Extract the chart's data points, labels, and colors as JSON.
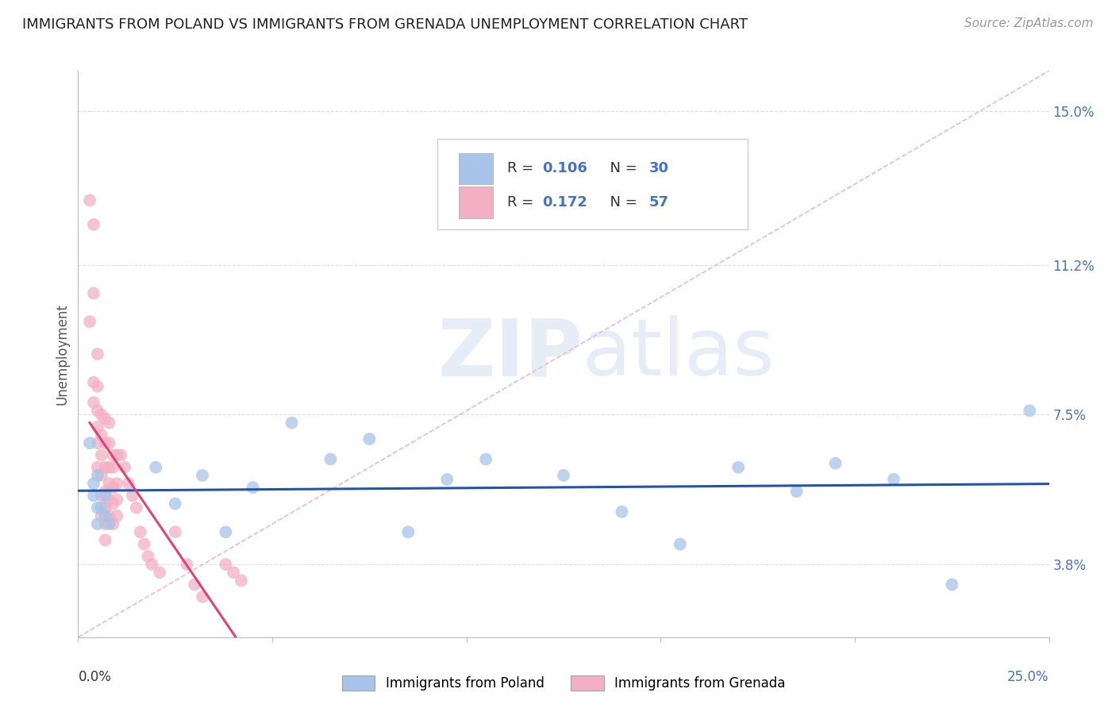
{
  "title": "IMMIGRANTS FROM POLAND VS IMMIGRANTS FROM GRENADA UNEMPLOYMENT CORRELATION CHART",
  "source": "Source: ZipAtlas.com",
  "ylabel": "Unemployment",
  "yticks": [
    3.8,
    7.5,
    11.2,
    15.0
  ],
  "xlim": [
    0.0,
    0.25
  ],
  "ylim": [
    0.02,
    0.16
  ],
  "legend_r_poland": "0.106",
  "legend_n_poland": "30",
  "legend_r_grenada": "0.172",
  "legend_n_grenada": "57",
  "color_poland": "#a8c4e8",
  "color_grenada": "#f4afc5",
  "trendline_color_poland": "#2255aa",
  "trendline_color_grenada": "#dd4477",
  "diagonal_color": "#f0b0c0",
  "poland_x": [
    0.003,
    0.004,
    0.004,
    0.005,
    0.005,
    0.005,
    0.006,
    0.007,
    0.007,
    0.008,
    0.02,
    0.025,
    0.032,
    0.038,
    0.045,
    0.055,
    0.065,
    0.075,
    0.085,
    0.095,
    0.105,
    0.125,
    0.14,
    0.155,
    0.17,
    0.185,
    0.195,
    0.21,
    0.225,
    0.245
  ],
  "poland_y": [
    0.068,
    0.058,
    0.055,
    0.06,
    0.052,
    0.048,
    0.052,
    0.05,
    0.055,
    0.048,
    0.062,
    0.053,
    0.06,
    0.046,
    0.057,
    0.073,
    0.064,
    0.069,
    0.046,
    0.059,
    0.064,
    0.06,
    0.051,
    0.043,
    0.062,
    0.056,
    0.063,
    0.059,
    0.033,
    0.076
  ],
  "grenada_x": [
    0.003,
    0.003,
    0.004,
    0.004,
    0.004,
    0.004,
    0.005,
    0.005,
    0.005,
    0.005,
    0.005,
    0.005,
    0.006,
    0.006,
    0.006,
    0.006,
    0.006,
    0.006,
    0.007,
    0.007,
    0.007,
    0.007,
    0.007,
    0.007,
    0.007,
    0.008,
    0.008,
    0.008,
    0.008,
    0.008,
    0.008,
    0.009,
    0.009,
    0.009,
    0.009,
    0.009,
    0.01,
    0.01,
    0.01,
    0.01,
    0.011,
    0.012,
    0.013,
    0.014,
    0.015,
    0.016,
    0.017,
    0.018,
    0.019,
    0.021,
    0.025,
    0.028,
    0.03,
    0.032,
    0.038,
    0.04,
    0.042
  ],
  "grenada_y": [
    0.128,
    0.098,
    0.122,
    0.105,
    0.083,
    0.078,
    0.09,
    0.082,
    0.076,
    0.072,
    0.068,
    0.062,
    0.075,
    0.07,
    0.065,
    0.06,
    0.055,
    0.05,
    0.074,
    0.068,
    0.062,
    0.056,
    0.052,
    0.048,
    0.044,
    0.073,
    0.068,
    0.062,
    0.058,
    0.054,
    0.05,
    0.065,
    0.062,
    0.057,
    0.053,
    0.048,
    0.065,
    0.058,
    0.054,
    0.05,
    0.065,
    0.062,
    0.058,
    0.055,
    0.052,
    0.046,
    0.043,
    0.04,
    0.038,
    0.036,
    0.046,
    0.038,
    0.033,
    0.03,
    0.038,
    0.036,
    0.034
  ]
}
